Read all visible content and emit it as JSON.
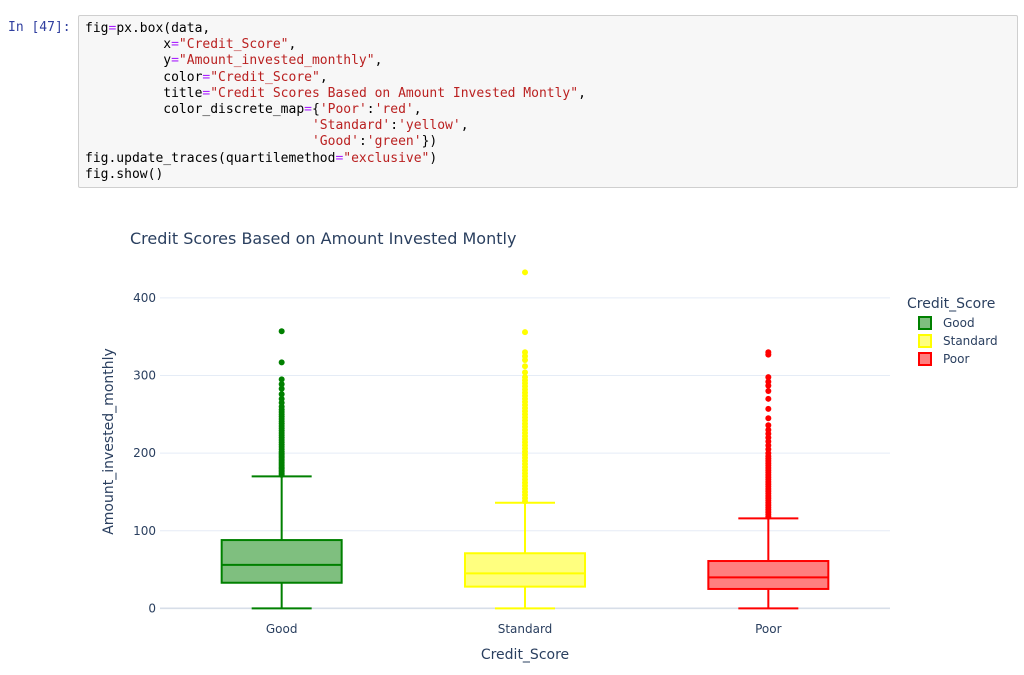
{
  "cell": {
    "prompt": "In [47]:",
    "code_lines": [
      [
        {
          "t": "fig",
          "c": "kw"
        },
        {
          "t": "=",
          "c": "op"
        },
        {
          "t": "px.box(data,",
          "c": "kw"
        }
      ],
      [
        {
          "t": "          x",
          "c": "kw"
        },
        {
          "t": "=",
          "c": "op"
        },
        {
          "t": "\"Credit_Score\"",
          "c": "str"
        },
        {
          "t": ",",
          "c": "kw"
        }
      ],
      [
        {
          "t": "          y",
          "c": "kw"
        },
        {
          "t": "=",
          "c": "op"
        },
        {
          "t": "\"Amount_invested_monthly\"",
          "c": "str"
        },
        {
          "t": ",",
          "c": "kw"
        }
      ],
      [
        {
          "t": "          color",
          "c": "kw"
        },
        {
          "t": "=",
          "c": "op"
        },
        {
          "t": "\"Credit_Score\"",
          "c": "str"
        },
        {
          "t": ",",
          "c": "kw"
        }
      ],
      [
        {
          "t": "          title",
          "c": "kw"
        },
        {
          "t": "=",
          "c": "op"
        },
        {
          "t": "\"Credit Scores Based on Amount Invested Montly\"",
          "c": "str"
        },
        {
          "t": ",",
          "c": "kw"
        }
      ],
      [
        {
          "t": "          color_discrete_map",
          "c": "kw"
        },
        {
          "t": "=",
          "c": "op"
        },
        {
          "t": "{",
          "c": "kw"
        },
        {
          "t": "'Poor'",
          "c": "str"
        },
        {
          "t": ":",
          "c": "kw"
        },
        {
          "t": "'red'",
          "c": "str"
        },
        {
          "t": ",",
          "c": "kw"
        }
      ],
      [
        {
          "t": "                             ",
          "c": "kw"
        },
        {
          "t": "'Standard'",
          "c": "str"
        },
        {
          "t": ":",
          "c": "kw"
        },
        {
          "t": "'yellow'",
          "c": "str"
        },
        {
          "t": ",",
          "c": "kw"
        }
      ],
      [
        {
          "t": "                             ",
          "c": "kw"
        },
        {
          "t": "'Good'",
          "c": "str"
        },
        {
          "t": ":",
          "c": "kw"
        },
        {
          "t": "'green'",
          "c": "str"
        },
        {
          "t": "})",
          "c": "kw"
        }
      ],
      [
        {
          "t": "fig.update_traces(quartilemethod",
          "c": "kw"
        },
        {
          "t": "=",
          "c": "op"
        },
        {
          "t": "\"exclusive\"",
          "c": "str"
        },
        {
          "t": ")",
          "c": "kw"
        }
      ],
      [
        {
          "t": "fig.show()",
          "c": "kw"
        }
      ]
    ]
  },
  "colors": {
    "Good": "#008000",
    "Standard": "#ffff00",
    "Poor": "#ff0000",
    "grid": "#e5ecf6",
    "text": "#2a3f5f"
  },
  "chart_data": {
    "type": "box",
    "title": "Credit Scores Based on Amount Invested Montly",
    "xlabel": "Credit_Score",
    "ylabel": "Amount_invested_monthly",
    "categories": [
      "Good",
      "Standard",
      "Poor"
    ],
    "ylim": [
      -15,
      445
    ],
    "yticks": [
      0,
      100,
      200,
      300,
      400
    ],
    "legend": {
      "title": "Credit_Score",
      "position": "top-right",
      "entries": [
        "Good",
        "Standard",
        "Poor"
      ]
    },
    "boxes": [
      {
        "name": "Good",
        "min": 0,
        "q1": 33,
        "median": 56,
        "q3": 88,
        "upper_fence": 170,
        "outliers": [
          172,
          174,
          176,
          178,
          180,
          182,
          184,
          186,
          188,
          190,
          192,
          194,
          196,
          198,
          200,
          202,
          205,
          208,
          211,
          214,
          217,
          220,
          223,
          226,
          229,
          232,
          235,
          238,
          241,
          244,
          247,
          250,
          253,
          256,
          260,
          265,
          270,
          276,
          283,
          289,
          295,
          317,
          357
        ]
      },
      {
        "name": "Standard",
        "min": 0,
        "q1": 28,
        "median": 45,
        "q3": 71,
        "upper_fence": 136,
        "outliers": [
          138,
          142,
          146,
          150,
          154,
          158,
          162,
          166,
          170,
          174,
          178,
          182,
          186,
          190,
          194,
          198,
          202,
          206,
          210,
          214,
          218,
          222,
          226,
          230,
          234,
          238,
          242,
          246,
          250,
          254,
          258,
          262,
          266,
          270,
          274,
          278,
          282,
          286,
          290,
          294,
          298,
          304,
          312,
          320,
          325,
          330,
          356,
          433
        ]
      },
      {
        "name": "Poor",
        "min": 0,
        "q1": 25,
        "median": 40,
        "q3": 61,
        "upper_fence": 116,
        "outliers": [
          118,
          121,
          124,
          127,
          130,
          133,
          136,
          139,
          142,
          145,
          148,
          151,
          154,
          157,
          160,
          163,
          166,
          169,
          172,
          175,
          178,
          181,
          184,
          187,
          190,
          193,
          196,
          200,
          205,
          210,
          215,
          220,
          225,
          230,
          236,
          245,
          257,
          270,
          280,
          287,
          292,
          298,
          327,
          330
        ]
      }
    ]
  }
}
